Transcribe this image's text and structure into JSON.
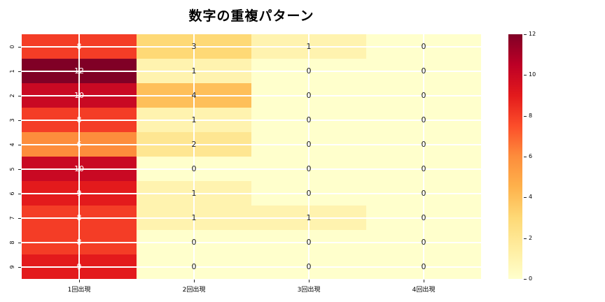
{
  "title": "数字の重複パターン",
  "chart_data": {
    "type": "heatmap",
    "title": "数字の重複パターン",
    "x_categories": [
      "1回出現",
      "2回出現",
      "3回出現",
      "4回出現"
    ],
    "y_categories": [
      "0",
      "1",
      "2",
      "3",
      "4",
      "5",
      "6",
      "7",
      "8",
      "9"
    ],
    "matrix": [
      [
        8,
        3,
        1,
        0
      ],
      [
        12,
        1,
        0,
        0
      ],
      [
        10,
        4,
        0,
        0
      ],
      [
        8,
        1,
        0,
        0
      ],
      [
        6,
        2,
        0,
        0
      ],
      [
        10,
        0,
        0,
        0
      ],
      [
        9,
        1,
        0,
        0
      ],
      [
        8,
        1,
        1,
        0
      ],
      [
        8,
        0,
        0,
        0
      ],
      [
        9,
        0,
        0,
        0
      ]
    ],
    "vmin": 0,
    "vmax": 12,
    "colorbar_ticks": [
      12,
      10,
      8,
      6,
      4,
      2,
      0
    ],
    "colormap_name": "YlOrRd",
    "value_colors": {
      "0": "#ffffcc",
      "1": "#fff3af",
      "2": "#fee692",
      "3": "#fed976",
      "4": "#febf5a",
      "6": "#fd8d3c",
      "8": "#f43d26",
      "9": "#e31a1c",
      "10": "#c90923",
      "12": "#800026"
    },
    "gradient_stops_top_to_bottom": [
      "#800026",
      "#bd0026",
      "#e31a1c",
      "#fc4e2a",
      "#fd8d3c",
      "#feb24c",
      "#fed976",
      "#ffeda0",
      "#ffffcc"
    ],
    "annotation_white_text_min": 6,
    "annotation_dark_text_color": "#1a1a1a",
    "annotation_light_text_color": "#ffffff",
    "grid_color": "#ffffff",
    "legend_position": "right",
    "grid": true
  }
}
